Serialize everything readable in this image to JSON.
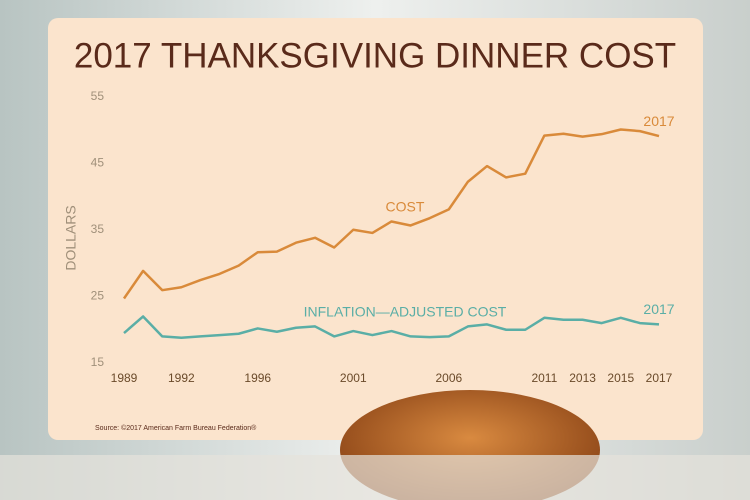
{
  "chart_data": {
    "type": "line",
    "title": "2017 THANKSGIVING DINNER COST",
    "y_label": "DOLLARS",
    "source": "Source: ©2017 American Farm Bureau Federation®",
    "x": [
      1989,
      1990,
      1991,
      1992,
      1993,
      1994,
      1995,
      1996,
      1997,
      1998,
      1999,
      2000,
      2001,
      2002,
      2003,
      2004,
      2005,
      2006,
      2007,
      2008,
      2009,
      2010,
      2011,
      2012,
      2013,
      2014,
      2015,
      2016,
      2017
    ],
    "xlim": [
      1989,
      2017
    ],
    "xticks": [
      1989,
      1992,
      1996,
      2001,
      2006,
      2011,
      2013,
      2015,
      2017
    ],
    "ylim": [
      15,
      55
    ],
    "yticks": [
      15,
      25,
      35,
      45,
      55
    ],
    "grid": false,
    "series": [
      {
        "name": "COST",
        "color": "#d98a3a",
        "end_label": "2017",
        "values": [
          24.7,
          28.85,
          25.95,
          26.39,
          27.47,
          28.4,
          29.64,
          31.66,
          31.75,
          33.09,
          33.83,
          32.37,
          35.04,
          34.56,
          36.28,
          35.68,
          36.78,
          38.1,
          42.26,
          44.61,
          42.91,
          43.47,
          49.2,
          49.48,
          49.04,
          49.41,
          50.11,
          49.87,
          49.12
        ]
      },
      {
        "name": "INFLATION—ADJUSTED COST",
        "color": "#5aaea6",
        "end_label": "2017",
        "values": [
          19.5,
          22,
          19,
          18.8,
          19,
          19.2,
          19.4,
          20.2,
          19.7,
          20.3,
          20.5,
          19,
          19.8,
          19.2,
          19.8,
          19,
          18.9,
          19,
          20.5,
          20.8,
          20,
          20,
          21.8,
          21.5,
          21.5,
          21,
          21.8,
          21,
          20.8
        ]
      }
    ]
  }
}
